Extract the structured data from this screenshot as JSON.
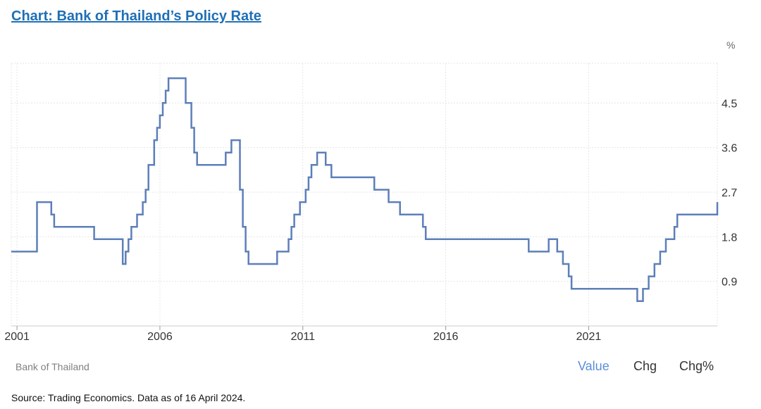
{
  "header": {
    "title": "Chart: Bank of Thailand’s Policy Rate"
  },
  "chart_data": {
    "type": "line",
    "title": "Chart: Bank of Thailand’s Policy Rate",
    "y_unit": "%",
    "xlabel": "",
    "ylabel": "",
    "x_ticks": [
      "2001",
      "2006",
      "2011",
      "2016",
      "2021"
    ],
    "y_ticks": [
      "0.9",
      "1.8",
      "2.7",
      "3.6",
      "4.5"
    ],
    "xlim": [
      2000.8,
      2025.5
    ],
    "ylim": [
      0,
      5.3
    ],
    "grid": true,
    "line_color": "#5d7fb9",
    "series": [
      {
        "step": true,
        "x": [
          2000.8,
          2001.7,
          2002.2,
          2002.3,
          2003.0,
          2003.7,
          2004.7,
          2004.8,
          2004.9,
          2005.0,
          2005.2,
          2005.4,
          2005.5,
          2005.6,
          2005.8,
          2005.9,
          2006.0,
          2006.1,
          2006.2,
          2006.3,
          2006.5,
          2006.9,
          2007.1,
          2007.2,
          2007.3,
          2007.5,
          2008.3,
          2008.5,
          2008.8,
          2008.9,
          2009.0,
          2009.1,
          2010.0,
          2010.1,
          2010.5,
          2010.6,
          2010.7,
          2010.9,
          2011.1,
          2011.2,
          2011.3,
          2011.5,
          2011.8,
          2012.0,
          2012.8,
          2013.5,
          2014.0,
          2014.4,
          2015.2,
          2015.3,
          2018.9,
          2019.6,
          2019.9,
          2020.1,
          2020.3,
          2020.4,
          2022.7,
          2022.8,
          2022.9,
          2023.1,
          2023.3,
          2023.5,
          2023.7,
          2024.0,
          2024.1,
          2025.5
        ],
        "y": [
          1.5,
          2.5,
          2.25,
          2.0,
          2.0,
          1.75,
          1.25,
          1.5,
          1.75,
          2.0,
          2.25,
          2.5,
          2.75,
          3.25,
          3.75,
          4.0,
          4.25,
          4.5,
          4.75,
          5.0,
          5.0,
          4.5,
          4.0,
          3.5,
          3.25,
          3.25,
          3.5,
          3.75,
          2.75,
          2.0,
          1.5,
          1.25,
          1.25,
          1.5,
          1.75,
          2.0,
          2.25,
          2.5,
          2.75,
          3.0,
          3.25,
          3.5,
          3.25,
          3.0,
          3.0,
          2.75,
          2.5,
          2.25,
          2.0,
          1.75,
          1.5,
          1.75,
          1.5,
          1.25,
          1.0,
          0.75,
          0.5,
          0.5,
          0.75,
          1.0,
          1.25,
          1.5,
          1.75,
          2.0,
          2.25,
          2.5
        ]
      }
    ]
  },
  "footer": {
    "source_label": "Bank of Thailand",
    "tabs": [
      "Value",
      "Chg",
      "Chg%"
    ],
    "active_tab": "Value",
    "note": "Source: Trading Economics. Data as of 16 April 2024."
  }
}
